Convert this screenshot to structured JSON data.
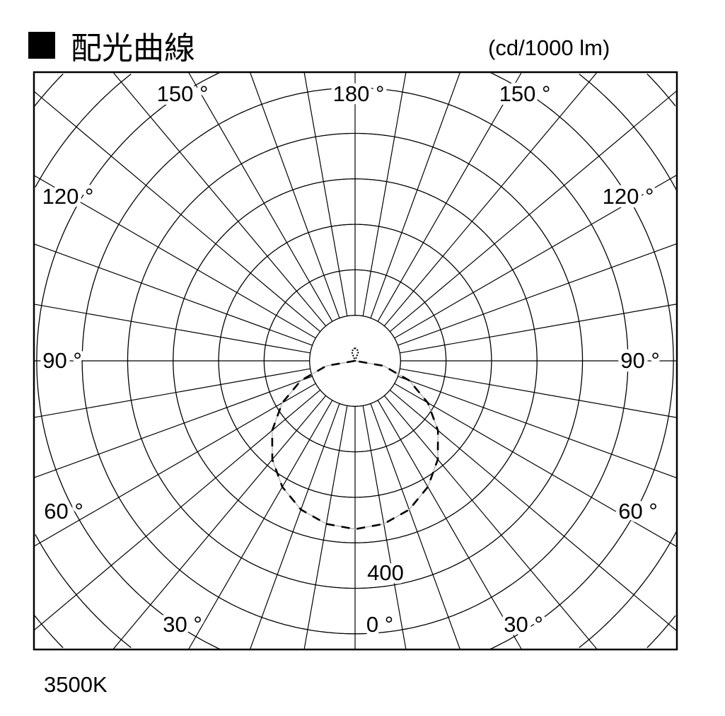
{
  "header": {
    "title": "配光曲線",
    "unit": "(cd/1000 lm)"
  },
  "footer": {
    "color_temperature": "3500K"
  },
  "chart_data": {
    "type": "polar",
    "title": "配光曲線",
    "unit": "(cd/1000 lm)",
    "radial_tick_label": "400",
    "radial_ring_step": 100,
    "radial_max": 1000,
    "angle_grid_step_deg": 10,
    "angle_labels": [
      "0°",
      "30°",
      "60°",
      "90°",
      "120°",
      "150°",
      "180°"
    ],
    "grid": true,
    "series": [
      {
        "style": "dashed-black",
        "color": "#000000",
        "angles": [
          0,
          10,
          20,
          30,
          40,
          50,
          60,
          70,
          80,
          90
        ],
        "values": [
          370,
          364,
          348,
          320,
          283,
          238,
          185,
          127,
          64,
          0
        ]
      },
      {
        "style": "solid-gray",
        "color": "#aaaaaa",
        "angles": [
          0,
          10,
          20,
          30,
          40,
          50,
          60,
          70,
          80,
          90
        ],
        "values": [
          370,
          364,
          348,
          320,
          283,
          238,
          185,
          127,
          64,
          0
        ]
      },
      {
        "style": "dotted-black",
        "color": "#000000",
        "angles": [
          150,
          160,
          170,
          180
        ],
        "values": [
          0,
          20,
          26,
          28
        ]
      }
    ]
  }
}
